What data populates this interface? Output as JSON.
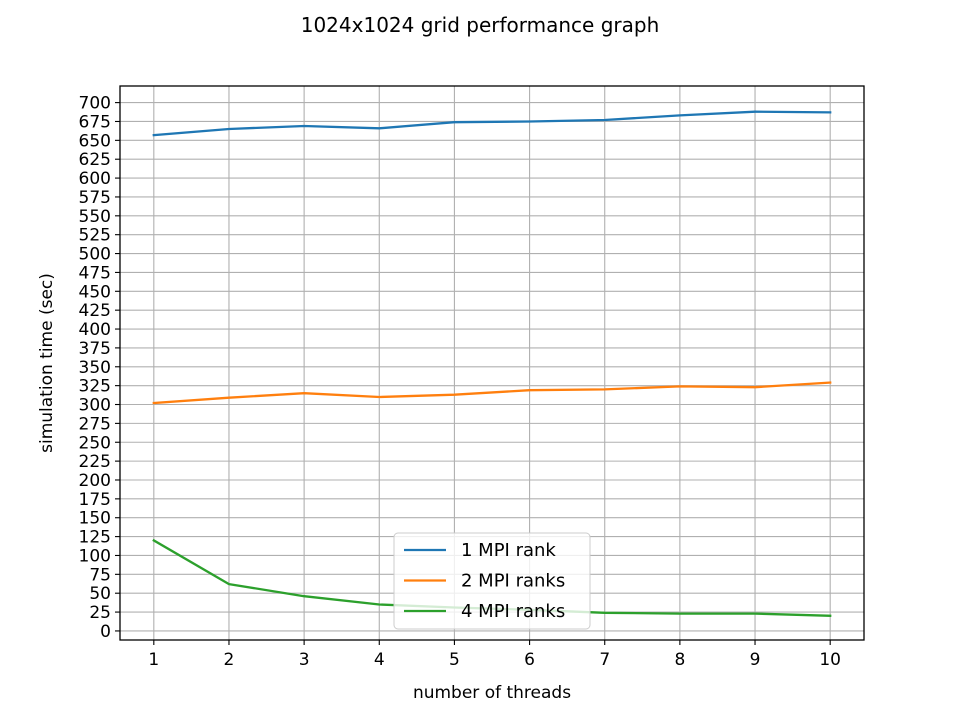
{
  "chart_data": {
    "type": "line",
    "title": "1024x1024 grid performance graph",
    "xlabel": "number of threads",
    "ylabel": "simulation time (sec)",
    "x": [
      1,
      2,
      3,
      4,
      5,
      6,
      7,
      8,
      9,
      10
    ],
    "xlim": [
      0.55,
      10.45
    ],
    "ylim": [
      -12,
      722
    ],
    "yticks": [
      0,
      25,
      50,
      75,
      100,
      125,
      150,
      175,
      200,
      225,
      250,
      275,
      300,
      325,
      350,
      375,
      400,
      425,
      450,
      475,
      500,
      525,
      550,
      575,
      600,
      625,
      650,
      675,
      700
    ],
    "grid": true,
    "legend_position": "lower-center",
    "series": [
      {
        "name": "1 MPI rank",
        "color": "#1f77b4",
        "values": [
          657,
          665,
          669,
          666,
          674,
          675,
          677,
          683,
          688,
          687
        ]
      },
      {
        "name": "2 MPI ranks",
        "color": "#ff7f0e",
        "values": [
          302,
          309,
          315,
          310,
          313,
          319,
          320,
          324,
          323,
          329
        ]
      },
      {
        "name": "4 MPI ranks",
        "color": "#2ca02c",
        "values": [
          120,
          62,
          46,
          35,
          31,
          28,
          24,
          23,
          23,
          20
        ]
      }
    ]
  }
}
